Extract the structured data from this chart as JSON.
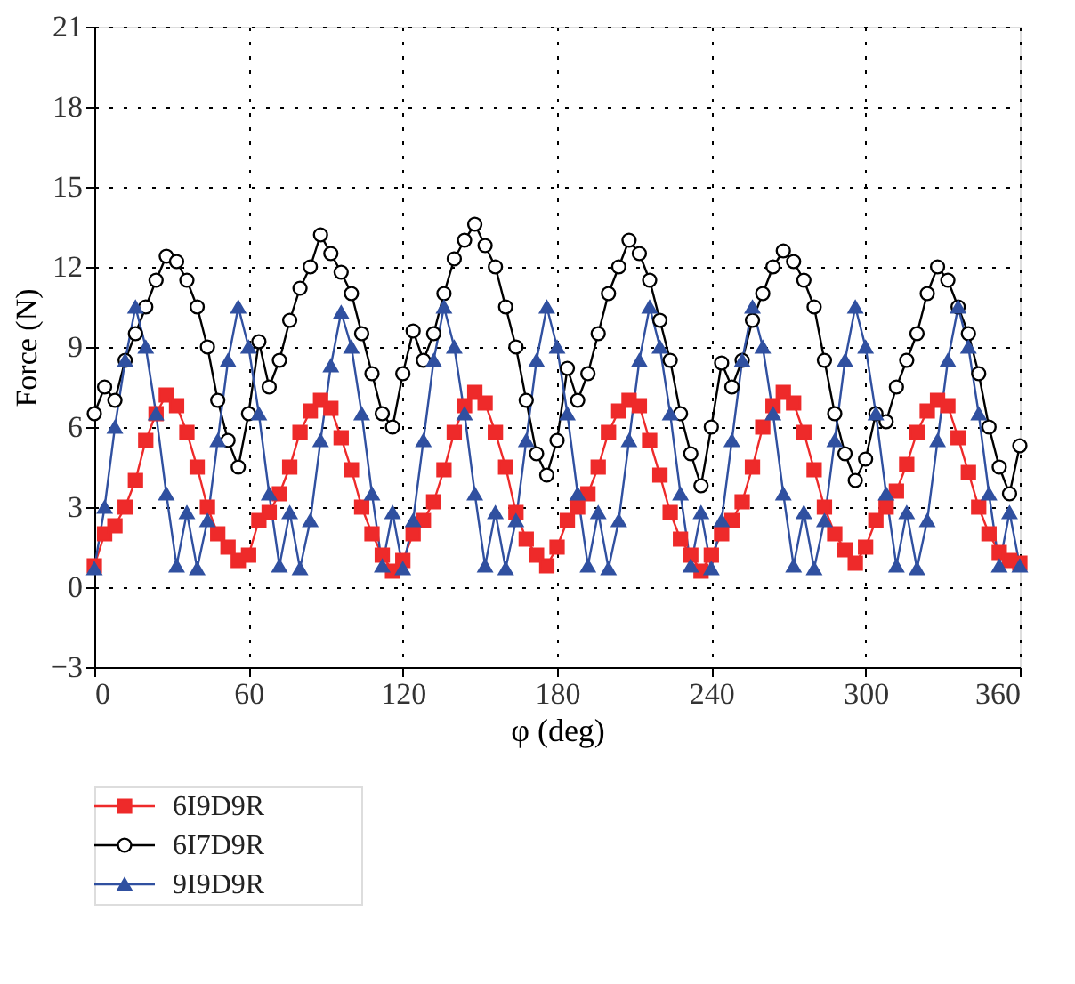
{
  "chart_data": {
    "type": "line",
    "xlabel": "φ (deg)",
    "ylabel": "Force (N)",
    "xlim": [
      0,
      360
    ],
    "xticks": [
      0,
      60,
      120,
      180,
      240,
      300,
      360
    ],
    "ylim": [
      -3,
      21
    ],
    "yticks": [
      -3,
      0,
      3,
      6,
      9,
      12,
      15,
      18,
      21
    ],
    "grid": true,
    "legend": "bottom",
    "line_style": "solid",
    "x": [
      0,
      4,
      8,
      12,
      16,
      20,
      24,
      28,
      32,
      36,
      40,
      44,
      48,
      52,
      56,
      60,
      64,
      68,
      72,
      76,
      80,
      84,
      88,
      92,
      96,
      100,
      104,
      108,
      112,
      116,
      120,
      124,
      128,
      132,
      136,
      140,
      144,
      148,
      152,
      156,
      160,
      164,
      168,
      172,
      176,
      180,
      184,
      188,
      192,
      196,
      200,
      204,
      208,
      212,
      216,
      220,
      224,
      228,
      232,
      236,
      240,
      244,
      248,
      252,
      256,
      260,
      264,
      268,
      272,
      276,
      280,
      284,
      288,
      292,
      296,
      300,
      304,
      308,
      312,
      316,
      320,
      324,
      328,
      332,
      336,
      340,
      344,
      348,
      352,
      356,
      360
    ],
    "series": [
      {
        "name": "6I9D9R",
        "color": "#ee2a2a",
        "marker": "square",
        "values": [
          0.8,
          2,
          2.3,
          3,
          4,
          5.5,
          6.5,
          7.2,
          6.8,
          5.8,
          4.5,
          3,
          2,
          1.5,
          1.0,
          1.2,
          2.5,
          2.8,
          3.5,
          4.5,
          5.8,
          6.6,
          7.0,
          6.7,
          5.6,
          4.4,
          3.0,
          2.0,
          1.2,
          0.6,
          1.0,
          2,
          2.5,
          3.2,
          4.4,
          5.8,
          6.8,
          7.3,
          6.9,
          5.8,
          4.5,
          2.8,
          1.8,
          1.2,
          0.8,
          1.5,
          2.5,
          3,
          3.5,
          4.5,
          5.8,
          6.6,
          7.0,
          6.8,
          5.5,
          4.2,
          2.8,
          1.8,
          1.2,
          0.6,
          1.2,
          2,
          2.5,
          3.2,
          4.5,
          6,
          6.8,
          7.3,
          6.9,
          5.8,
          4.4,
          3,
          2,
          1.4,
          0.9,
          1.5,
          2.5,
          3,
          3.6,
          4.6,
          5.8,
          6.6,
          7.0,
          6.8,
          5.6,
          4.3,
          3.0,
          2,
          1.3,
          1.0,
          0.9
        ]
      },
      {
        "name": "6I7D9R",
        "color": "#000000",
        "marker": "circle",
        "values": [
          6.5,
          7.5,
          7,
          8.5,
          9.5,
          10.5,
          11.5,
          12.4,
          12.2,
          11.5,
          10.5,
          9,
          7,
          5.5,
          4.5,
          6.5,
          9.2,
          7.5,
          8.5,
          10,
          11.2,
          12,
          13.2,
          12.5,
          11.8,
          11,
          9.5,
          8,
          6.5,
          6.0,
          8.0,
          9.6,
          8.5,
          9.5,
          11,
          12.3,
          13,
          13.6,
          12.8,
          12,
          10.5,
          9,
          7,
          5,
          4.2,
          5.5,
          8.2,
          7,
          8,
          9.5,
          11,
          12,
          13,
          12.5,
          11.5,
          10,
          8.5,
          6.5,
          5,
          3.8,
          6,
          8.4,
          7.5,
          8.5,
          10,
          11,
          12,
          12.6,
          12.2,
          11.5,
          10.5,
          8.5,
          6.5,
          5,
          4.0,
          4.8,
          6.5,
          6.2,
          7.5,
          8.5,
          9.5,
          11,
          12,
          11.5,
          10.5,
          9.5,
          8,
          6,
          4.5,
          3.5,
          5.3
        ]
      },
      {
        "name": "9I9D9R",
        "color": "#3050a0",
        "marker": "triangle",
        "values": [
          0.7,
          3,
          6,
          8.5,
          10.5,
          9,
          6.5,
          3.5,
          0.8,
          2.8,
          0.7,
          2.5,
          5.5,
          8.5,
          10.5,
          9,
          6.5,
          3.5,
          0.8,
          2.8,
          0.7,
          2.5,
          5.5,
          8.3,
          10.3,
          9,
          6.5,
          3.5,
          0.8,
          2.8,
          0.7,
          2.5,
          5.5,
          8.5,
          10.5,
          9,
          6.5,
          3.5,
          0.8,
          2.8,
          0.7,
          2.5,
          5.5,
          8.5,
          10.5,
          9,
          6.5,
          3.5,
          0.8,
          2.8,
          0.7,
          2.5,
          5.5,
          8.5,
          10.5,
          9,
          6.5,
          3.5,
          0.8,
          2.8,
          0.7,
          2.5,
          5.5,
          8.5,
          10.5,
          9,
          6.5,
          3.5,
          0.8,
          2.8,
          0.7,
          2.5,
          5.5,
          8.5,
          10.5,
          9,
          6.5,
          3.5,
          0.8,
          2.8,
          0.7,
          2.5,
          5.5,
          8.5,
          10.5,
          9,
          6.5,
          3.5,
          0.8,
          2.8,
          0.8
        ]
      }
    ]
  }
}
